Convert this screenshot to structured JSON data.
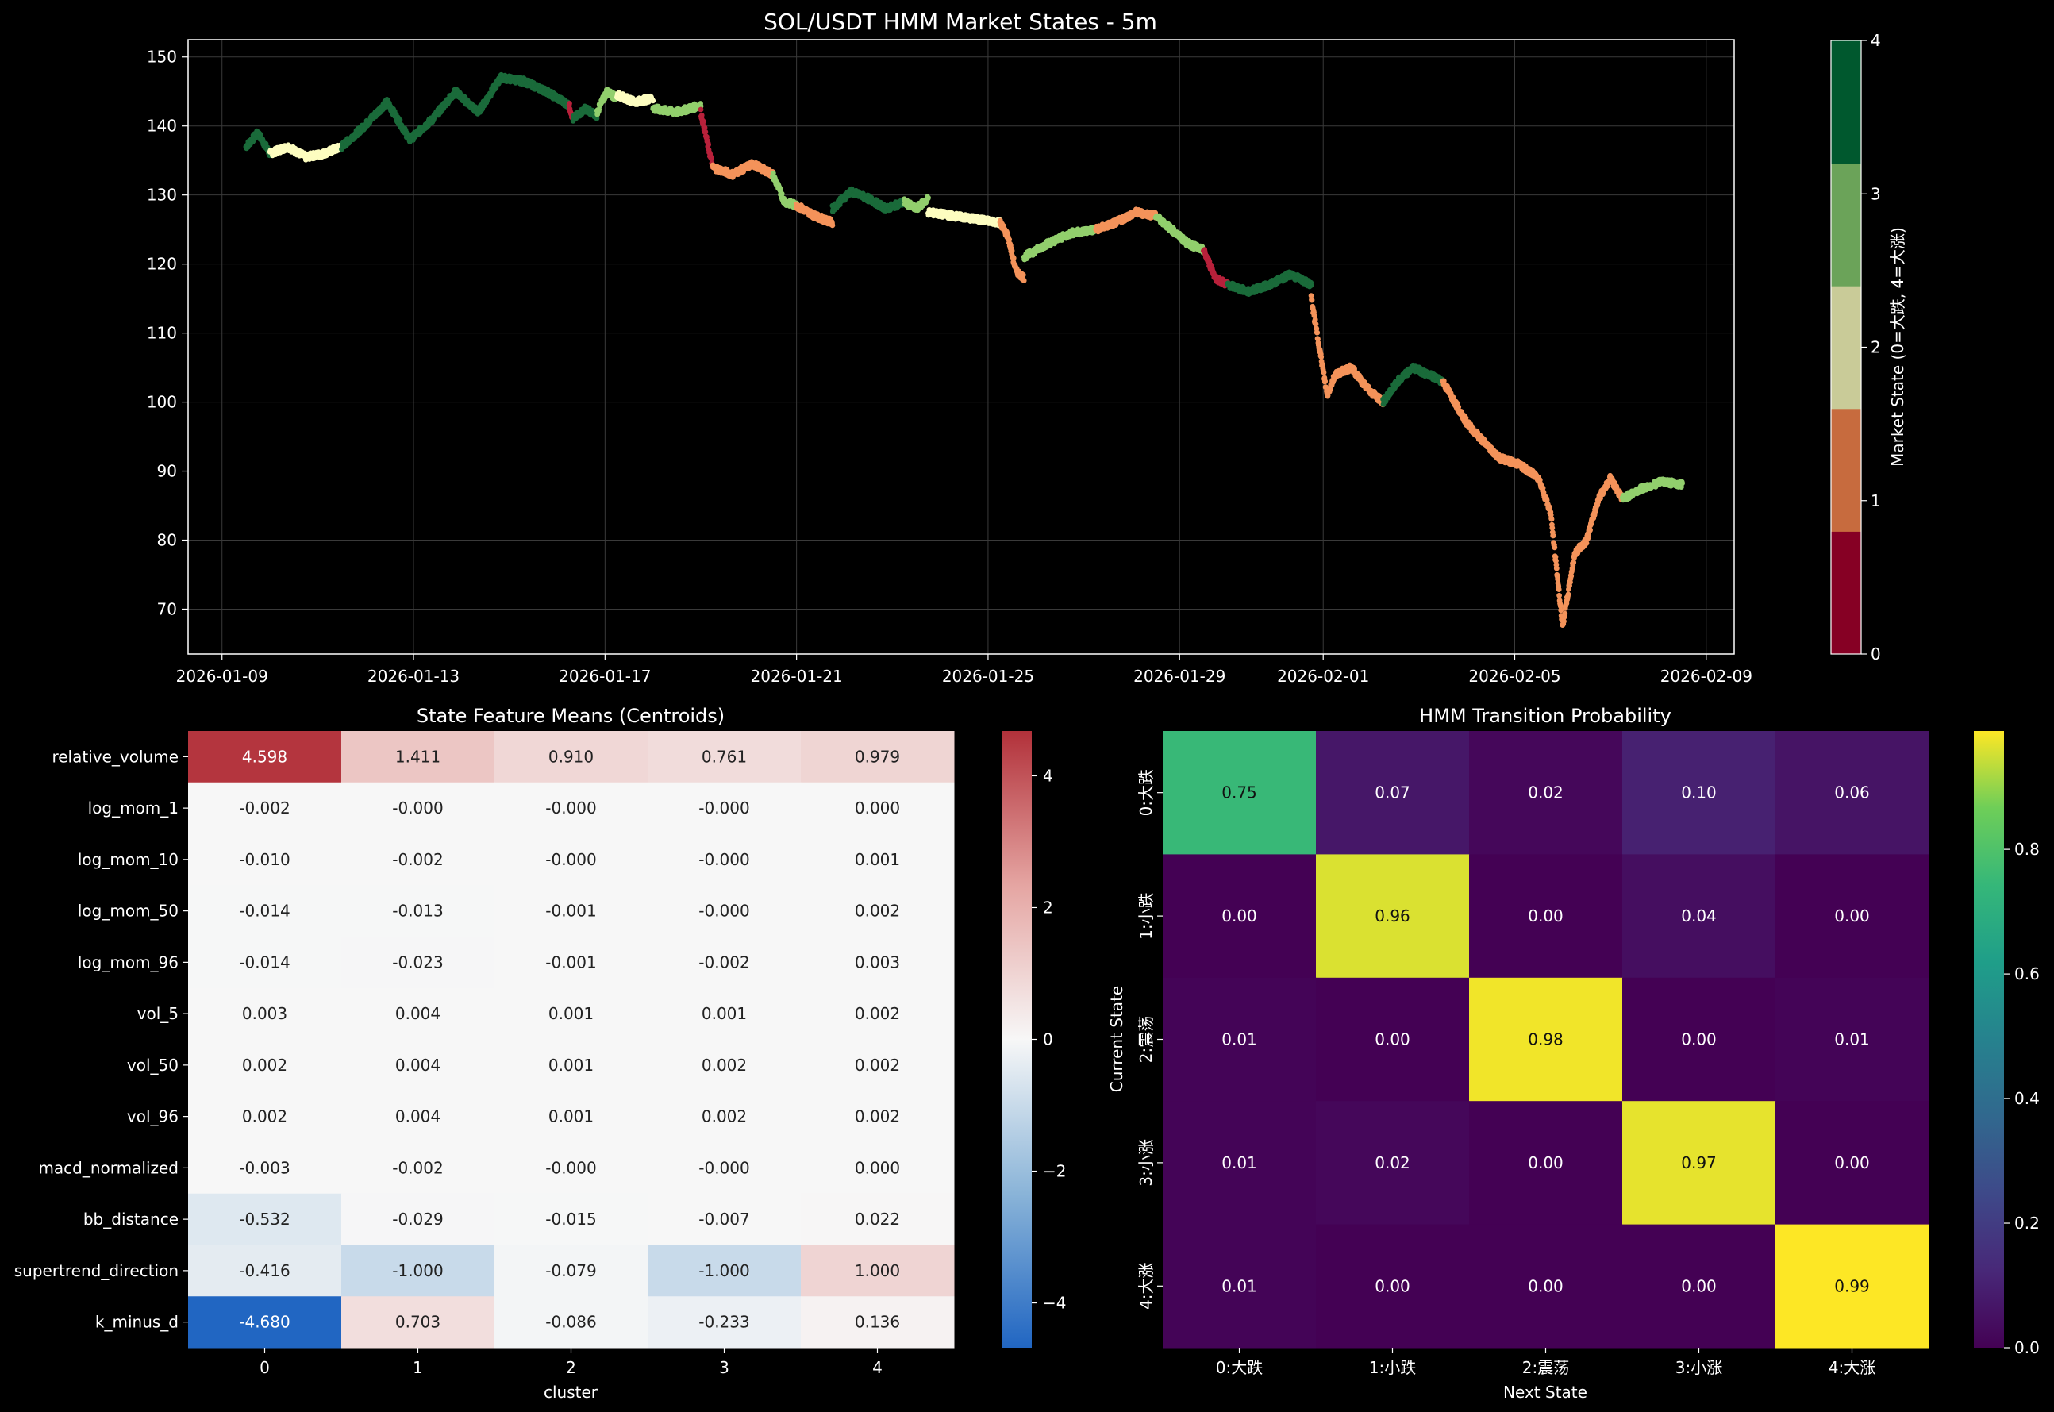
{
  "colors": {
    "background": "#000000",
    "state_colors": [
      "#860024",
      "#c76b3e",
      "#c9cb98",
      "#6ba359",
      "#00582e"
    ],
    "points_state_colors": [
      "#b8213b",
      "#f4935a",
      "#fdfdc0",
      "#92cf6d",
      "#1a6b3a"
    ],
    "diverging_low": "#2166c2",
    "diverging_mid": "#f7f7f7",
    "diverging_high": "#b2313a"
  },
  "chart_data": [
    {
      "type": "scatter",
      "title": "SOL/USDT HMM Market States - 5m",
      "xlabel": "",
      "ylabel": "",
      "x_tick_labels": [
        "2026-01-09",
        "2026-01-13",
        "2026-01-17",
        "2026-01-21",
        "2026-01-25",
        "2026-01-29",
        "2026-02-01",
        "2026-02-05",
        "2026-02-09"
      ],
      "y_ticks": [
        70,
        80,
        90,
        100,
        110,
        120,
        130,
        140,
        150
      ],
      "ylim": [
        63.5,
        152.5
      ],
      "xlim": [
        "2026-01-08T07:00",
        "2026-02-09T14:00"
      ],
      "grid": true,
      "colorbar": {
        "label": "Market State (0=大跌, 4=大涨)",
        "ticks": [
          0,
          1,
          2,
          3,
          4
        ],
        "range": [
          0,
          4
        ]
      },
      "series_state_segments": [
        {
          "start": "2026-01-09T12:00",
          "end": "2026-01-10T00:00",
          "state": 4,
          "y": [
            137,
            139,
            136
          ]
        },
        {
          "start": "2026-01-10T00:00",
          "end": "2026-01-11T12:00",
          "state": 2,
          "y": [
            136,
            137,
            135.5,
            136,
            137
          ]
        },
        {
          "start": "2026-01-11T12:00",
          "end": "2026-01-16T06:00",
          "state": 4,
          "y": [
            137,
            140,
            143.5,
            138,
            141,
            145,
            142,
            147,
            146.5,
            145,
            143
          ]
        },
        {
          "start": "2026-01-16T06:00",
          "end": "2026-01-16T08:00",
          "state": 0,
          "y": [
            143,
            141
          ]
        },
        {
          "start": "2026-01-16T08:00",
          "end": "2026-01-16T20:00",
          "state": 4,
          "y": [
            141,
            142.5,
            141.5
          ]
        },
        {
          "start": "2026-01-16T20:00",
          "end": "2026-01-17T06:00",
          "state": 3,
          "y": [
            142,
            145,
            144
          ]
        },
        {
          "start": "2026-01-17T06:00",
          "end": "2026-01-18T00:00",
          "state": 2,
          "y": [
            144.5,
            143.5,
            144
          ]
        },
        {
          "start": "2026-01-18T00:00",
          "end": "2026-01-19T00:00",
          "state": 3,
          "y": [
            142.5,
            142,
            143
          ]
        },
        {
          "start": "2026-01-19T00:00",
          "end": "2026-01-19T06:00",
          "state": 0,
          "y": [
            142,
            138,
            134
          ]
        },
        {
          "start": "2026-01-19T06:00",
          "end": "2026-01-20T12:00",
          "state": 1,
          "y": [
            134,
            133,
            134.5,
            133
          ]
        },
        {
          "start": "2026-01-20T12:00",
          "end": "2026-01-21T00:00",
          "state": 3,
          "y": [
            133,
            129,
            128.5
          ]
        },
        {
          "start": "2026-01-21T00:00",
          "end": "2026-01-21T18:00",
          "state": 1,
          "y": [
            128.5,
            127,
            126
          ]
        },
        {
          "start": "2026-01-21T18:00",
          "end": "2026-01-23T06:00",
          "state": 4,
          "y": [
            128,
            130.5,
            129.5,
            128,
            129
          ]
        },
        {
          "start": "2026-01-23T06:00",
          "end": "2026-01-23T18:00",
          "state": 3,
          "y": [
            129,
            128,
            129.5
          ]
        },
        {
          "start": "2026-01-23T18:00",
          "end": "2026-01-25T06:00",
          "state": 2,
          "y": [
            127.5,
            127,
            126.5,
            126
          ]
        },
        {
          "start": "2026-01-25T06:00",
          "end": "2026-01-25T18:00",
          "state": 1,
          "y": [
            126,
            124,
            119,
            118
          ]
        },
        {
          "start": "2026-01-25T18:00",
          "end": "2026-01-27T06:00",
          "state": 3,
          "y": [
            121,
            123,
            124.5,
            125
          ]
        },
        {
          "start": "2026-01-27T06:00",
          "end": "2026-01-28T12:00",
          "state": 1,
          "y": [
            125,
            126,
            127.5,
            127
          ]
        },
        {
          "start": "2026-01-28T12:00",
          "end": "2026-01-29T12:00",
          "state": 3,
          "y": [
            127,
            125,
            123,
            122
          ]
        },
        {
          "start": "2026-01-29T12:00",
          "end": "2026-01-30T00:00",
          "state": 0,
          "y": [
            122,
            118,
            117
          ]
        },
        {
          "start": "2026-01-30T00:00",
          "end": "2026-01-31T18:00",
          "state": 4,
          "y": [
            117,
            116,
            117,
            118.5,
            117
          ]
        },
        {
          "start": "2026-01-31T18:00",
          "end": "2026-02-01T06:00",
          "state": 1,
          "y": [
            115,
            108,
            101,
            104
          ]
        },
        {
          "start": "2026-02-01T06:00",
          "end": "2026-02-02T06:00",
          "state": 1,
          "y": [
            104,
            105,
            102,
            100
          ]
        },
        {
          "start": "2026-02-02T06:00",
          "end": "2026-02-03T12:00",
          "state": 4,
          "y": [
            100,
            103,
            105,
            104,
            103
          ]
        },
        {
          "start": "2026-02-03T12:00",
          "end": "2026-02-04T06:00",
          "state": 1,
          "y": [
            103,
            100,
            97,
            95
          ]
        },
        {
          "start": "2026-02-04T06:00",
          "end": "2026-02-05T12:00",
          "state": 1,
          "y": [
            95,
            92,
            91,
            89
          ]
        },
        {
          "start": "2026-02-05T12:00",
          "end": "2026-02-06T12:00",
          "state": 1,
          "y": [
            89,
            84,
            67.5,
            78,
            80
          ]
        },
        {
          "start": "2026-02-06T12:00",
          "end": "2026-02-07T06:00",
          "state": 1,
          "y": [
            80,
            86,
            89,
            86
          ]
        },
        {
          "start": "2026-02-07T06:00",
          "end": "2026-02-08T12:00",
          "state": 3,
          "y": [
            86,
            87.5,
            88.5,
            88
          ]
        }
      ]
    },
    {
      "type": "heatmap",
      "title": "State Feature Means (Centroids)",
      "xlabel": "cluster",
      "ylabel": "",
      "columns": [
        "0",
        "1",
        "2",
        "3",
        "4"
      ],
      "rows": [
        "relative_volume",
        "log_mom_1",
        "log_mom_10",
        "log_mom_50",
        "log_mom_96",
        "vol_5",
        "vol_50",
        "vol_96",
        "macd_normalized",
        "bb_distance",
        "supertrend_direction",
        "k_minus_d"
      ],
      "values": [
        [
          "4.598",
          "1.411",
          "0.910",
          "0.761",
          "0.979"
        ],
        [
          "-0.002",
          "-0.000",
          "-0.000",
          "-0.000",
          "0.000"
        ],
        [
          "-0.010",
          "-0.002",
          "-0.000",
          "-0.000",
          "0.001"
        ],
        [
          "-0.014",
          "-0.013",
          "-0.001",
          "-0.000",
          "0.002"
        ],
        [
          "-0.014",
          "-0.023",
          "-0.001",
          "-0.002",
          "0.003"
        ],
        [
          "0.003",
          "0.004",
          "0.001",
          "0.001",
          "0.002"
        ],
        [
          "0.002",
          "0.004",
          "0.001",
          "0.002",
          "0.002"
        ],
        [
          "0.002",
          "0.004",
          "0.001",
          "0.002",
          "0.002"
        ],
        [
          "-0.003",
          "-0.002",
          "-0.000",
          "-0.000",
          "0.000"
        ],
        [
          "-0.532",
          "-0.029",
          "-0.015",
          "-0.007",
          "0.022"
        ],
        [
          "-0.416",
          "-1.000",
          "-0.079",
          "-1.000",
          "1.000"
        ],
        [
          "-4.680",
          "0.703",
          "-0.086",
          "-0.233",
          "0.136"
        ]
      ],
      "colorbar": {
        "ticks": [
          -4,
          -2,
          0,
          2,
          4
        ],
        "range": [
          -4.68,
          4.68
        ],
        "colormap": "RdBu_r"
      }
    },
    {
      "type": "heatmap",
      "title": "HMM Transition Probability",
      "xlabel": "Next State",
      "ylabel": "Current State",
      "columns": [
        "0:大跌",
        "1:小跌",
        "2:震荡",
        "3:小涨",
        "4:大涨"
      ],
      "rows": [
        "0:大跌",
        "1:小跌",
        "2:震荡",
        "3:小涨",
        "4:大涨"
      ],
      "values": [
        [
          "0.75",
          "0.07",
          "0.02",
          "0.10",
          "0.06"
        ],
        [
          "0.00",
          "0.96",
          "0.00",
          "0.04",
          "0.00"
        ],
        [
          "0.01",
          "0.00",
          "0.98",
          "0.00",
          "0.01"
        ],
        [
          "0.01",
          "0.02",
          "0.00",
          "0.97",
          "0.00"
        ],
        [
          "0.01",
          "0.00",
          "0.00",
          "0.00",
          "0.99"
        ]
      ],
      "colorbar": {
        "ticks": [
          "0.0",
          "0.2",
          "0.4",
          "0.6",
          "0.8"
        ],
        "range": [
          0,
          0.99
        ],
        "colormap": "viridis"
      }
    }
  ]
}
